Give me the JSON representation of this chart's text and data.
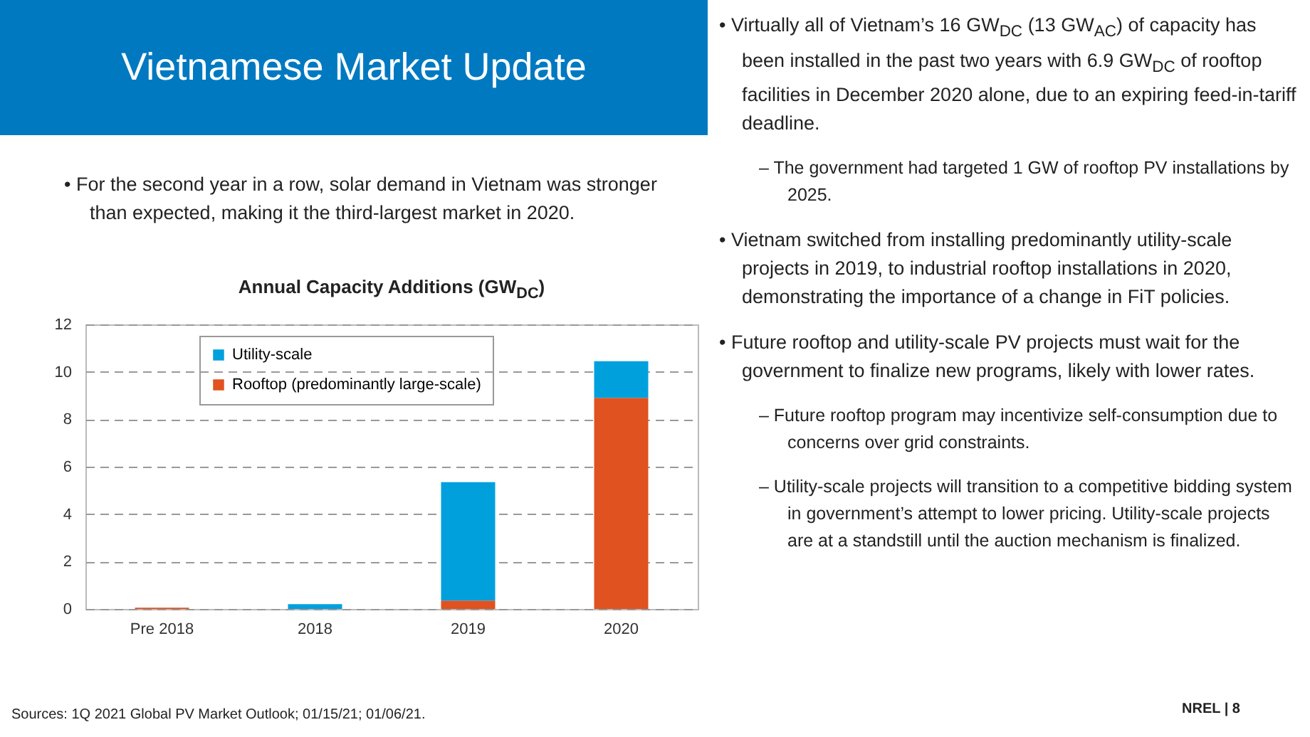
{
  "chart_data": {
    "type": "bar",
    "title": "Annual Capacity Additions (GW$_{DC}$)",
    "categories": [
      "Pre 2018",
      "2018",
      "2019",
      "2020"
    ],
    "series": [
      {
        "name": "Rooftop (predominantly large-scale)",
        "color": "#e0521f",
        "values": [
          0.05,
          0,
          0.35,
          8.9
        ]
      },
      {
        "name": "Utility-scale",
        "color": "#00a0dd",
        "values": [
          0,
          0.2,
          5.0,
          1.55
        ]
      }
    ],
    "stacked": true,
    "ylim": [
      0,
      12
    ],
    "yticks": [
      0,
      2,
      4,
      6,
      8,
      10,
      12
    ],
    "grid": "y",
    "legend": "top left",
    "annotations": [
      "Vietnamese Market Update",
      "• For the second year in a row, solar demand in Vietnam was stronger than expected, making it the third-largest market in 2020.",
      "• Virtually all of Vietnam’s 16 GW$_{DC}$ (13 GW$_{AC}$) of capacity has been installed in the past two years with 6.9 GW$_{DC}$ of rooftop facilities in December 2020 alone, due to an expiring feed-in-tariff deadline.",
      "– The government had targeted 1 GW of rooftop PV installations by 2025.",
      "• Vietnam switched from installing predominantly utility-scale projects in 2019, to industrial rooftop installations in 2020, demonstrating the importance of a change in FiT policies.",
      "• Future rooftop and utility-scale PV projects must wait for the government to finalize new programs, likely with lower rates.",
      "– Future rooftop program may incentivize self-consumption due to concerns over grid constraints.",
      "– Utility-scale projects will transition to a competitive bidding system in government’s attempt to lower pricing. Utility-scale projects are at a standstill until the auction mechanism is finalized.",
      "Sources: 1Q 2021 Global PV Market Outlook; 01/15/21; 01/06/21.",
      "NREL | 8"
    ]
  }
}
